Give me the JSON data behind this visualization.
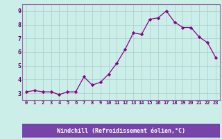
{
  "x": [
    0,
    1,
    2,
    3,
    4,
    5,
    6,
    7,
    8,
    9,
    10,
    11,
    12,
    13,
    14,
    15,
    16,
    17,
    18,
    19,
    20,
    21,
    22,
    23
  ],
  "y": [
    3.1,
    3.2,
    3.1,
    3.1,
    2.9,
    3.1,
    3.1,
    4.2,
    3.6,
    3.8,
    4.4,
    5.2,
    6.2,
    7.4,
    7.3,
    8.4,
    8.5,
    9.0,
    8.2,
    7.8,
    7.8,
    7.1,
    6.7,
    5.6
  ],
  "xlabel": "Windchill (Refroidissement éolien,°C)",
  "ylim": [
    2.5,
    9.5
  ],
  "xlim": [
    -0.5,
    23.5
  ],
  "yticks": [
    3,
    4,
    5,
    6,
    7,
    8,
    9
  ],
  "xtick_labels": [
    "0",
    "1",
    "2",
    "3",
    "4",
    "5",
    "6",
    "7",
    "8",
    "9",
    "10",
    "11",
    "12",
    "13",
    "14",
    "15",
    "16",
    "17",
    "18",
    "19",
    "20",
    "21",
    "22",
    "23"
  ],
  "line_color": "#880088",
  "marker_color": "#880088",
  "bg_color": "#cceee8",
  "grid_color": "#aacccc",
  "border_color": "#9966aa",
  "xlabel_bg": "#7744aa",
  "xlabel_fg": "#ffffff",
  "tick_color": "#660066"
}
